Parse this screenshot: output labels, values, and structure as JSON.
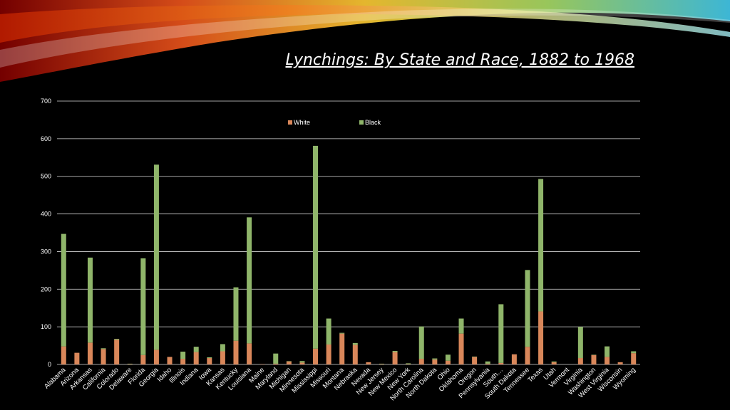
{
  "slide": {
    "title": "Lynchings: By State and Race, 1882 to 1968"
  },
  "colors": {
    "white_series": "#d9875a",
    "black_series": "#8fb56a",
    "gridline": "#ffffff",
    "axis_text": "#ffffff"
  },
  "chart_data": {
    "type": "bar",
    "stacked": true,
    "title": "",
    "xlabel": "",
    "ylabel": "",
    "ylim": [
      0,
      700
    ],
    "yticks": [
      0,
      100,
      200,
      300,
      400,
      500,
      600,
      700
    ],
    "grid": true,
    "legend_position": "top-center",
    "categories": [
      "Alabama",
      "Arizona",
      "Arkansas",
      "California",
      "Colorado",
      "Delaware",
      "Florida",
      "Georgia",
      "Idaho",
      "Illinois",
      "Indiana",
      "Iowa",
      "Kansas",
      "Kentucky",
      "Louisiana",
      "Maine",
      "Maryland",
      "Michigan",
      "Minnesota",
      "Mississippi",
      "Missouri",
      "Montana",
      "Nebraska",
      "Nevada",
      "New Jersey",
      "New Mexico",
      "New York",
      "North Carolina",
      "North Dakota",
      "Ohio",
      "Oklahoma",
      "Oregon",
      "Pennsylvania",
      "South…",
      "South Dakota",
      "Tennessee",
      "Texas",
      "Utah",
      "Vermont",
      "Virginia",
      "Washington",
      "West Virginia",
      "Wisconsin",
      "Wyoming"
    ],
    "series": [
      {
        "name": "White",
        "values": [
          48,
          31,
          58,
          41,
          66,
          1,
          25,
          39,
          20,
          15,
          33,
          17,
          35,
          63,
          56,
          1,
          2,
          8,
          5,
          42,
          53,
          82,
          52,
          6,
          1,
          33,
          1,
          15,
          13,
          10,
          82,
          20,
          2,
          4,
          27,
          47,
          141,
          6,
          0,
          17,
          25,
          20,
          6,
          30
        ]
      },
      {
        "name": "Black",
        "values": [
          299,
          0,
          226,
          2,
          2,
          1,
          257,
          492,
          0,
          19,
          14,
          2,
          19,
          142,
          335,
          0,
          27,
          1,
          4,
          539,
          69,
          2,
          5,
          0,
          1,
          3,
          2,
          86,
          3,
          16,
          40,
          1,
          6,
          156,
          0,
          204,
          352,
          2,
          0,
          83,
          1,
          28,
          0,
          5
        ]
      }
    ]
  }
}
